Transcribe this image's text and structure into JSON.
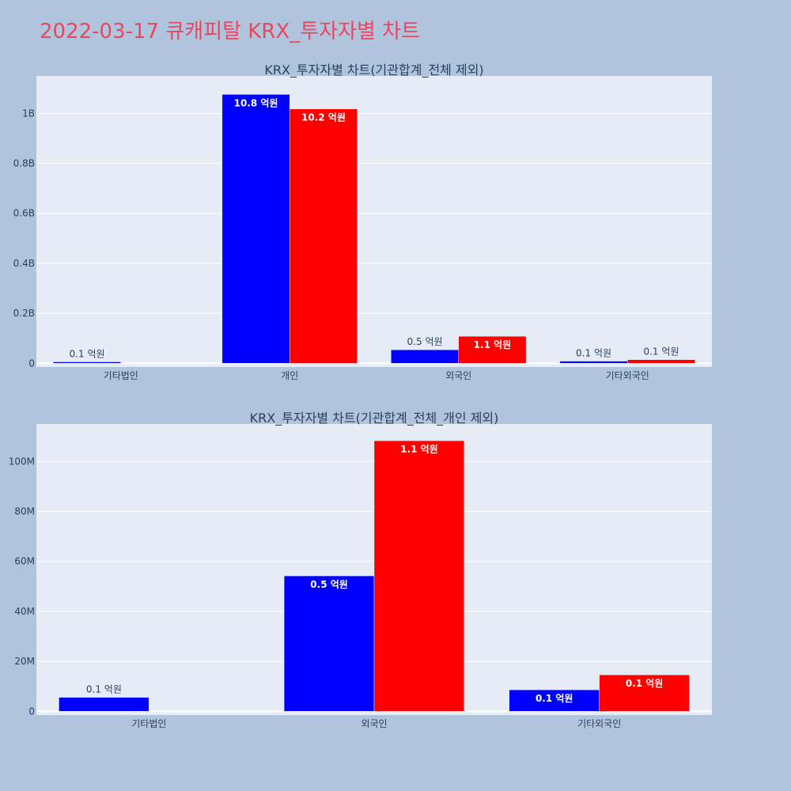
{
  "page": {
    "title": "2022-03-17 큐캐피탈 KRX_투자자별 차트",
    "title_color": "#e8485f",
    "background": "#b0c4de",
    "plot_background": "#e5ecf6"
  },
  "colors": {
    "series_blue": "#0000ff",
    "series_red": "#ff0000"
  },
  "chart_data": [
    {
      "type": "bar",
      "title": "KRX_투자자별 차트(기관합계_전체 제외)",
      "xlabel": "",
      "ylabel": "",
      "categories": [
        "기타법인",
        "개인",
        "외국인",
        "기타외국인"
      ],
      "ylim": [
        -15000000,
        1150000000
      ],
      "y_ticks": [
        {
          "value": 0,
          "label": "0"
        },
        {
          "value": 200000000,
          "label": "0.2B"
        },
        {
          "value": 400000000,
          "label": "0.4B"
        },
        {
          "value": 600000000,
          "label": "0.6B"
        },
        {
          "value": 800000000,
          "label": "0.8B"
        },
        {
          "value": 1000000000,
          "label": "1B"
        }
      ],
      "grid": true,
      "series": [
        {
          "color": "#0000ff",
          "values": [
            5500000,
            1076000000,
            54000000,
            8500000
          ],
          "labels": [
            "0.1 억원",
            "10.8 억원",
            "0.5 억원",
            "0.1 억원"
          ]
        },
        {
          "color": "#ff0000",
          "values": [
            null,
            1018000000,
            108000000,
            14500000
          ],
          "labels": [
            null,
            "10.2 억원",
            "1.1 억원",
            "0.1 억원"
          ]
        }
      ]
    },
    {
      "type": "bar",
      "title": "KRX_투자자별 차트(기관합계_전체_개인 제외)",
      "xlabel": "",
      "ylabel": "",
      "categories": [
        "기타법인",
        "외국인",
        "기타외국인"
      ],
      "ylim": [
        -1500000,
        115000000
      ],
      "y_ticks": [
        {
          "value": 0,
          "label": "0"
        },
        {
          "value": 20000000,
          "label": "20M"
        },
        {
          "value": 40000000,
          "label": "40M"
        },
        {
          "value": 60000000,
          "label": "60M"
        },
        {
          "value": 80000000,
          "label": "80M"
        },
        {
          "value": 100000000,
          "label": "100M"
        }
      ],
      "grid": true,
      "series": [
        {
          "color": "#0000ff",
          "values": [
            5600000,
            54200000,
            8600000
          ],
          "labels": [
            "0.1 억원",
            "0.5 억원",
            "0.1 억원"
          ]
        },
        {
          "color": "#ff0000",
          "values": [
            null,
            108300000,
            14600000
          ],
          "labels": [
            null,
            "1.1 억원",
            "0.1 억원"
          ]
        }
      ]
    }
  ]
}
